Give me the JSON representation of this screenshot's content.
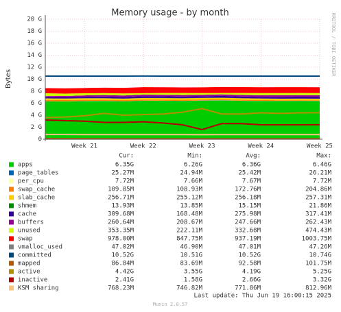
{
  "chart_data": {
    "type": "area",
    "title": "Memory usage - by month",
    "y_label": "Bytes",
    "side_label": "RRDTOOL / TOBI OETIKER",
    "last_update": "Last update: Thu Jun 19 16:00:15 2025",
    "footer": "Munin 2.0.57",
    "legend_headers": {
      "cur": "Cur:",
      "min": "Min:",
      "avg": "Avg:",
      "max": "Max:"
    },
    "categories": [
      null,
      null,
      "Week 21",
      null,
      null,
      "Week 22",
      null,
      null,
      "Week 23",
      null,
      null,
      "Week 24",
      null,
      null,
      "Week 25"
    ],
    "ylim": [
      0,
      20
    ],
    "yticks": [
      0,
      {
        "value": 2,
        "label": "2 G"
      },
      {
        "value": 4,
        "label": "4 G"
      },
      {
        "value": 6,
        "label": "6 G"
      },
      {
        "value": 8,
        "label": "8 G"
      },
      {
        "value": 10,
        "label": "10 G"
      },
      {
        "value": 12,
        "label": "12 G"
      },
      {
        "value": 14,
        "label": "14 G"
      },
      {
        "value": 16,
        "label": "16 G"
      },
      {
        "value": 18,
        "label": "18 G"
      },
      {
        "value": 20,
        "label": "20 G"
      }
    ],
    "grid": true,
    "series": [
      {
        "name": "apps",
        "color": "#00CC00",
        "stack": true,
        "stats": {
          "cur": "6.35G",
          "min": "6.26G",
          "avg": "6.36G",
          "max": "6.46G"
        },
        "values": [
          6.3,
          6.28,
          6.33,
          6.35,
          6.3,
          6.4,
          6.38,
          6.36,
          6.42,
          6.46,
          6.38,
          6.35,
          6.34,
          6.36,
          6.35
        ]
      },
      {
        "name": "page_tables",
        "color": "#0066B3",
        "stack": true,
        "stats": {
          "cur": "25.27M",
          "min": "24.94M",
          "avg": "25.42M",
          "max": "26.21M"
        },
        "values": [
          0.025,
          0.025,
          0.025,
          0.026,
          0.025,
          0.025,
          0.026,
          0.025,
          0.025,
          0.026,
          0.025,
          0.025,
          0.025,
          0.025,
          0.025
        ]
      },
      {
        "name": "per_cpu",
        "color": "#FFFFA0",
        "stack": true,
        "stats": {
          "cur": "7.72M",
          "min": "7.66M",
          "avg": "7.67M",
          "max": "7.72M"
        },
        "values": [
          0.0077,
          0.0077,
          0.0077,
          0.0077,
          0.0077,
          0.0077,
          0.0077,
          0.0077,
          0.0077,
          0.0077,
          0.0077,
          0.0077,
          0.0077,
          0.0077,
          0.0077
        ]
      },
      {
        "name": "swap_cache",
        "color": "#FF8000",
        "stack": true,
        "stats": {
          "cur": "109.85M",
          "min": "108.93M",
          "avg": "172.76M",
          "max": "204.86M"
        },
        "values": [
          0.2,
          0.2,
          0.19,
          0.18,
          0.17,
          0.17,
          0.18,
          0.17,
          0.16,
          0.15,
          0.15,
          0.14,
          0.12,
          0.11,
          0.11
        ]
      },
      {
        "name": "slab_cache",
        "color": "#FFCC00",
        "stack": true,
        "stats": {
          "cur": "256.71M",
          "min": "255.12M",
          "avg": "256.18M",
          "max": "257.31M"
        },
        "values": [
          0.256,
          0.256,
          0.256,
          0.256,
          0.256,
          0.256,
          0.256,
          0.256,
          0.256,
          0.256,
          0.256,
          0.256,
          0.256,
          0.257,
          0.257
        ]
      },
      {
        "name": "shmem",
        "color": "#008F00",
        "stack": true,
        "stats": {
          "cur": "13.93M",
          "min": "13.85M",
          "avg": "15.15M",
          "max": "21.86M"
        },
        "values": [
          0.021,
          0.018,
          0.016,
          0.015,
          0.015,
          0.015,
          0.015,
          0.015,
          0.015,
          0.014,
          0.014,
          0.014,
          0.014,
          0.014,
          0.014
        ]
      },
      {
        "name": "cache",
        "color": "#330099",
        "stack": true,
        "stats": {
          "cur": "309.68M",
          "min": "168.48M",
          "avg": "275.98M",
          "max": "317.41M"
        },
        "values": [
          0.17,
          0.2,
          0.25,
          0.28,
          0.27,
          0.3,
          0.29,
          0.28,
          0.27,
          0.3,
          0.28,
          0.27,
          0.3,
          0.31,
          0.31
        ]
      },
      {
        "name": "buffers",
        "color": "#990099",
        "stack": true,
        "stats": {
          "cur": "260.64M",
          "min": "208.67M",
          "avg": "247.66M",
          "max": "262.43M"
        },
        "values": [
          0.21,
          0.22,
          0.23,
          0.24,
          0.24,
          0.25,
          0.25,
          0.25,
          0.25,
          0.26,
          0.26,
          0.26,
          0.26,
          0.26,
          0.26
        ]
      },
      {
        "name": "unused",
        "color": "#CCFF00",
        "stack": true,
        "stats": {
          "cur": "353.35M",
          "min": "222.11M",
          "avg": "332.68M",
          "max": "474.43M"
        },
        "values": [
          0.47,
          0.4,
          0.35,
          0.33,
          0.35,
          0.25,
          0.3,
          0.33,
          0.28,
          0.22,
          0.33,
          0.36,
          0.37,
          0.35,
          0.35
        ]
      },
      {
        "name": "swap",
        "color": "#FF0000",
        "stack": true,
        "stats": {
          "cur": "978.00M",
          "min": "847.75M",
          "avg": "937.19M",
          "max": "1003.75M"
        },
        "values": [
          0.85,
          0.86,
          0.88,
          0.9,
          0.92,
          1.0,
          0.95,
          0.94,
          0.96,
          1.0,
          0.98,
          0.97,
          0.98,
          0.98,
          0.98
        ]
      },
      {
        "name": "vmalloc_used",
        "color": "#808080",
        "stack": false,
        "stats": {
          "cur": "47.02M",
          "min": "46.90M",
          "avg": "47.01M",
          "max": "47.26M"
        },
        "values": [
          0.047,
          0.047,
          0.047,
          0.047,
          0.047,
          0.047,
          0.047,
          0.047,
          0.047,
          0.047,
          0.047,
          0.047,
          0.047,
          0.047,
          0.047
        ]
      },
      {
        "name": "committed",
        "color": "#00487D",
        "stack": false,
        "stats": {
          "cur": "10.52G",
          "min": "10.51G",
          "avg": "10.52G",
          "max": "10.74G"
        },
        "values": [
          10.51,
          10.52,
          10.52,
          10.52,
          10.52,
          10.53,
          10.52,
          10.52,
          10.52,
          10.52,
          10.52,
          10.52,
          10.52,
          10.52,
          10.52
        ]
      },
      {
        "name": "mapped",
        "color": "#B35A00",
        "stack": false,
        "stats": {
          "cur": "86.84M",
          "min": "83.69M",
          "avg": "92.58M",
          "max": "101.75M"
        },
        "values": [
          0.1,
          0.1,
          0.095,
          0.09,
          0.09,
          0.09,
          0.09,
          0.09,
          0.09,
          0.09,
          0.09,
          0.09,
          0.088,
          0.087,
          0.087
        ]
      },
      {
        "name": "active",
        "color": "#B38F00",
        "stack": false,
        "stats": {
          "cur": "4.42G",
          "min": "3.55G",
          "avg": "4.19G",
          "max": "5.25G"
        },
        "values": [
          3.6,
          3.7,
          3.9,
          4.3,
          4.0,
          4.1,
          4.2,
          4.5,
          5.1,
          4.2,
          4.2,
          4.4,
          4.3,
          4.4,
          4.42
        ]
      },
      {
        "name": "inactive",
        "color": "#B30000",
        "stack": false,
        "stats": {
          "cur": "2.41G",
          "min": "1.58G",
          "avg": "2.66G",
          "max": "3.32G"
        },
        "values": [
          3.2,
          3.1,
          3.0,
          2.8,
          2.8,
          2.9,
          2.7,
          2.4,
          1.6,
          2.6,
          2.6,
          2.4,
          2.4,
          2.4,
          2.41
        ]
      },
      {
        "name": "KSM sharing",
        "color": "#FFC080",
        "stack": false,
        "stats": {
          "cur": "768.23M",
          "min": "746.82M",
          "avg": "771.86M",
          "max": "812.96M"
        },
        "values": [
          0.79,
          0.78,
          0.77,
          0.77,
          0.77,
          0.77,
          0.77,
          0.77,
          0.76,
          0.77,
          0.77,
          0.77,
          0.77,
          0.77,
          0.77
        ]
      }
    ]
  }
}
